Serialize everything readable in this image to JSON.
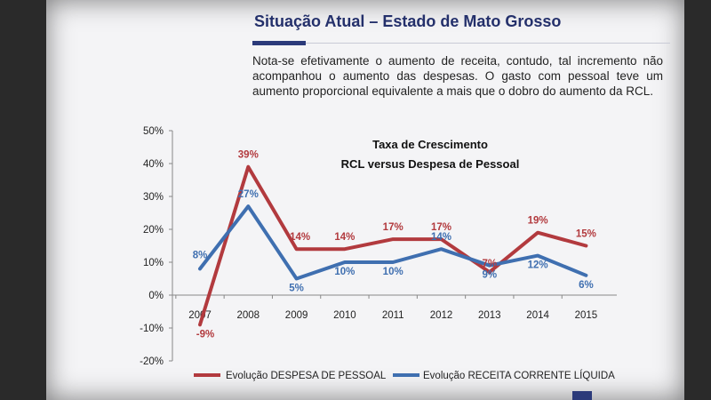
{
  "slide": {
    "title": "Situação Atual – Estado de Mato Grosso",
    "description": "Nota-se efetivamente o aumento de receita, contudo, tal incremento não acompanhou o aumento das despesas. O gasto com pessoal teve um aumento proporcional equivalente a mais que o dobro do aumento da RCL."
  },
  "chart_data": {
    "type": "line",
    "title": "Taxa de Crescimento",
    "subtitle": "RCL versus Despesa de Pessoal",
    "x": [
      "2007",
      "2008",
      "2009",
      "2010",
      "2011",
      "2012",
      "2013",
      "2014",
      "2015"
    ],
    "ylim": [
      -20,
      50
    ],
    "yticks": [
      -20,
      -10,
      0,
      10,
      20,
      30,
      40,
      50
    ],
    "ytick_labels": [
      "-20%",
      "-10%",
      "0%",
      "10%",
      "20%",
      "30%",
      "40%",
      "50%"
    ],
    "grid": false,
    "legend_position": "bottom",
    "series": [
      {
        "name": "Evolução DESPESA DE PESSOAL",
        "color": "#b23a3e",
        "values": [
          -9,
          39,
          14,
          14,
          17,
          17,
          7,
          19,
          15
        ],
        "labels": [
          "-9%",
          "39%",
          "14%",
          "14%",
          "17%",
          "17%",
          "7%",
          "19%",
          "15%"
        ]
      },
      {
        "name": "Evolução RECEITA CORRENTE LÍQUIDA",
        "color": "#3f6fb0",
        "values": [
          8,
          27,
          5,
          10,
          10,
          14,
          9,
          12,
          6
        ],
        "labels": [
          "8%",
          "27%",
          "5%",
          "10%",
          "10%",
          "14%",
          "9%",
          "12%",
          "6%"
        ]
      }
    ]
  }
}
